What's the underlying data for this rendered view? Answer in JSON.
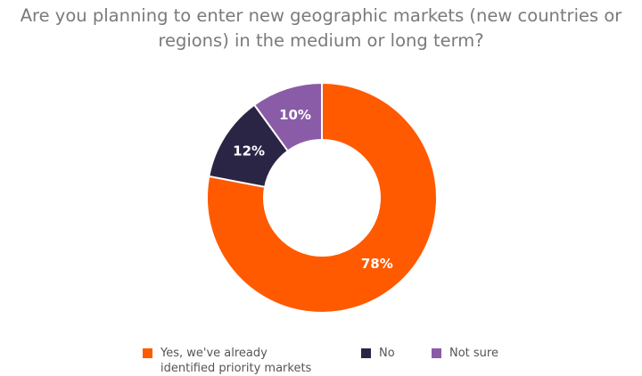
{
  "chart_data": {
    "type": "donut",
    "title": "Are you planning to enter new geographic markets (new countries or regions) in the medium or long term?",
    "categories": [
      "Yes, we've already identified priority markets",
      "No",
      "Not sure"
    ],
    "values": [
      78,
      12,
      10
    ],
    "value_labels": [
      "78%",
      "12%",
      "10%"
    ],
    "colors": [
      "#ff5a00",
      "#2b2545",
      "#8a5ca8"
    ]
  }
}
